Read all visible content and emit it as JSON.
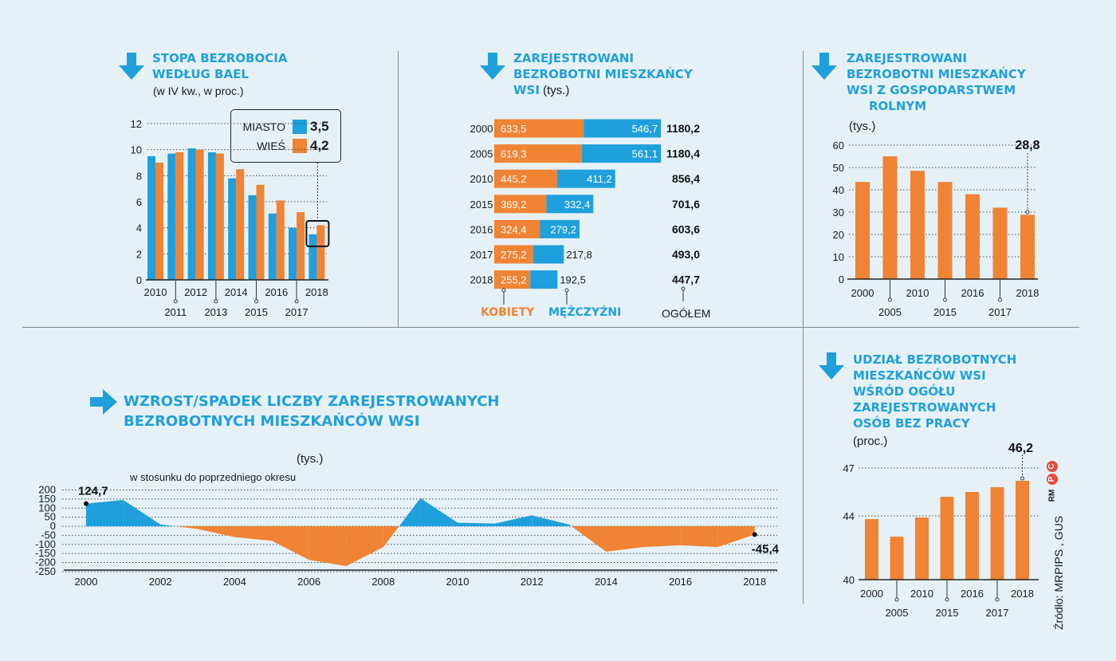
{
  "colors": {
    "blue": "#1fa0dc",
    "orange": "#f08334"
  },
  "panel1": {
    "title1": "STOPA BEZROBOCIA",
    "title2": "WEDŁUG BAEL",
    "subtitle": "(w IV kw., w proc.)",
    "legend": {
      "miasto_label": "MIASTO",
      "miasto_value": "3,5",
      "wies_label": "WIEŚ",
      "wies_value": "4,2"
    }
  },
  "panel2": {
    "title1": "ZAREJESTROWANI",
    "title2": "BEZROBOTNI MIESZKAŃCY",
    "title3": "WSI",
    "unit": " (tys.)",
    "footer": {
      "kobiety": "KOBIETY",
      "mezczyzni": "MĘŻCZYŹNI",
      "ogolem": "OGÓŁEM"
    }
  },
  "panel3": {
    "title1": "ZAREJESTROWANI",
    "title2": "BEZROBOTNI MIESZKAŃCY",
    "title3": "WSI Z GOSPODARSTWEM",
    "title4": "ROLNYM",
    "subtitle": "(tys.)",
    "callout": "28,8"
  },
  "panel4": {
    "title1": "WZROST/SPADEK LICZBY ZAREJESTROWANYCH",
    "title2": "BEZROBOTNYCH  MIESZKAŃCÓW WSI",
    "unit": "(tys.)",
    "subtitle": "w stosunku do poprzedniego okresu",
    "first_label": "124,7",
    "last_label": "-45,4"
  },
  "panel5": {
    "title1": "UDZIAŁ BEZROBOTNYCH",
    "title2": "MIESZKAŃCÓW WSI",
    "title3": "WŚRÓD OGÓŁU",
    "title4": "ZAREJESTROWANYCH",
    "title5": "OSÓB BEZ PRACY",
    "subtitle": "(proc.)",
    "callout": "46,2"
  },
  "source": "Źródło: MRPIPS , GUS",
  "logo_text": "RM",
  "chart_data": [
    {
      "id": "bael",
      "type": "bar",
      "title": "STOPA BEZROBOCIA WEDŁUG BAEL",
      "ylabel": "w IV kw., w proc.",
      "categories": [
        "2010",
        "2011",
        "2012",
        "2013",
        "2014",
        "2015",
        "2016",
        "2017",
        "2018"
      ],
      "series": [
        {
          "name": "MIASTO",
          "values": [
            9.5,
            9.7,
            10.1,
            9.8,
            7.8,
            6.5,
            5.1,
            4.0,
            3.5
          ]
        },
        {
          "name": "WIEŚ",
          "values": [
            9.0,
            9.8,
            10.0,
            9.7,
            8.5,
            7.3,
            6.1,
            5.2,
            4.2
          ]
        }
      ],
      "ylim": [
        0,
        12
      ],
      "yticks": [
        "0",
        "2",
        "4",
        "6",
        "8",
        "10",
        "12"
      ]
    },
    {
      "id": "zarejestrowani",
      "type": "bar",
      "orientation": "horizontal",
      "stacked": true,
      "categories": [
        "2000",
        "2005",
        "2010",
        "2015",
        "2016",
        "2017",
        "2018"
      ],
      "series": [
        {
          "name": "KOBIETY",
          "values": [
            633.5,
            619.3,
            445.2,
            369.2,
            324.4,
            275.2,
            255.2
          ],
          "labels": [
            "633,5",
            "619,3",
            "445,2",
            "369,2",
            "324,4",
            "275,2",
            "255,2"
          ]
        },
        {
          "name": "MĘŻCZYŹNI",
          "values": [
            546.7,
            561.1,
            411.2,
            332.4,
            279.2,
            217.8,
            192.5
          ],
          "labels": [
            "546,7",
            "561,1",
            "411,2",
            "332,4",
            "279,2",
            "217,8",
            "192,5"
          ]
        }
      ],
      "totals": [
        "1180,2",
        "1180,4",
        "856,4",
        "701,6",
        "603,6",
        "493,0",
        "447,7"
      ]
    },
    {
      "id": "gospodarstwo",
      "type": "bar",
      "categories": [
        "2000",
        "2005",
        "2010",
        "2015",
        "2016",
        "2017",
        "2018"
      ],
      "values": [
        43.5,
        55.0,
        48.5,
        43.5,
        38.0,
        32.0,
        28.8
      ],
      "ylim": [
        0,
        60
      ],
      "yticks": [
        "0",
        "10",
        "20",
        "30",
        "40",
        "50",
        "60"
      ]
    },
    {
      "id": "zmiana",
      "type": "area",
      "title": "WZROST/SPADEK LICZBY ZAREJESTROWANYCH BEZROBOTNYCH MIESZKAŃCÓW WSI",
      "x": [
        2000,
        2001,
        2002,
        2003,
        2004,
        2005,
        2006,
        2007,
        2008,
        2009,
        2010,
        2011,
        2012,
        2013,
        2014,
        2015,
        2016,
        2017,
        2018
      ],
      "values": [
        124.7,
        145,
        10,
        -15,
        -60,
        -80,
        -185,
        -220,
        -115,
        155,
        20,
        15,
        60,
        10,
        -140,
        -115,
        -105,
        -115,
        -45.4
      ],
      "ylim": [
        -250,
        200
      ],
      "yticks": [
        "200",
        "150",
        "100",
        "50",
        "0",
        "-50",
        "-100",
        "-150",
        "-200",
        "-250"
      ],
      "xticks": [
        "2000",
        "2002",
        "2004",
        "2006",
        "2008",
        "2010",
        "2012",
        "2014",
        "2016",
        "2018"
      ]
    },
    {
      "id": "udzial",
      "type": "bar",
      "categories": [
        "2000",
        "2005",
        "2010",
        "2015",
        "2016",
        "2017",
        "2018"
      ],
      "values": [
        43.8,
        42.7,
        43.9,
        45.2,
        45.5,
        45.8,
        46.2
      ],
      "ylim": [
        40,
        47
      ],
      "yticks": [
        "40",
        "44",
        "47"
      ]
    }
  ]
}
